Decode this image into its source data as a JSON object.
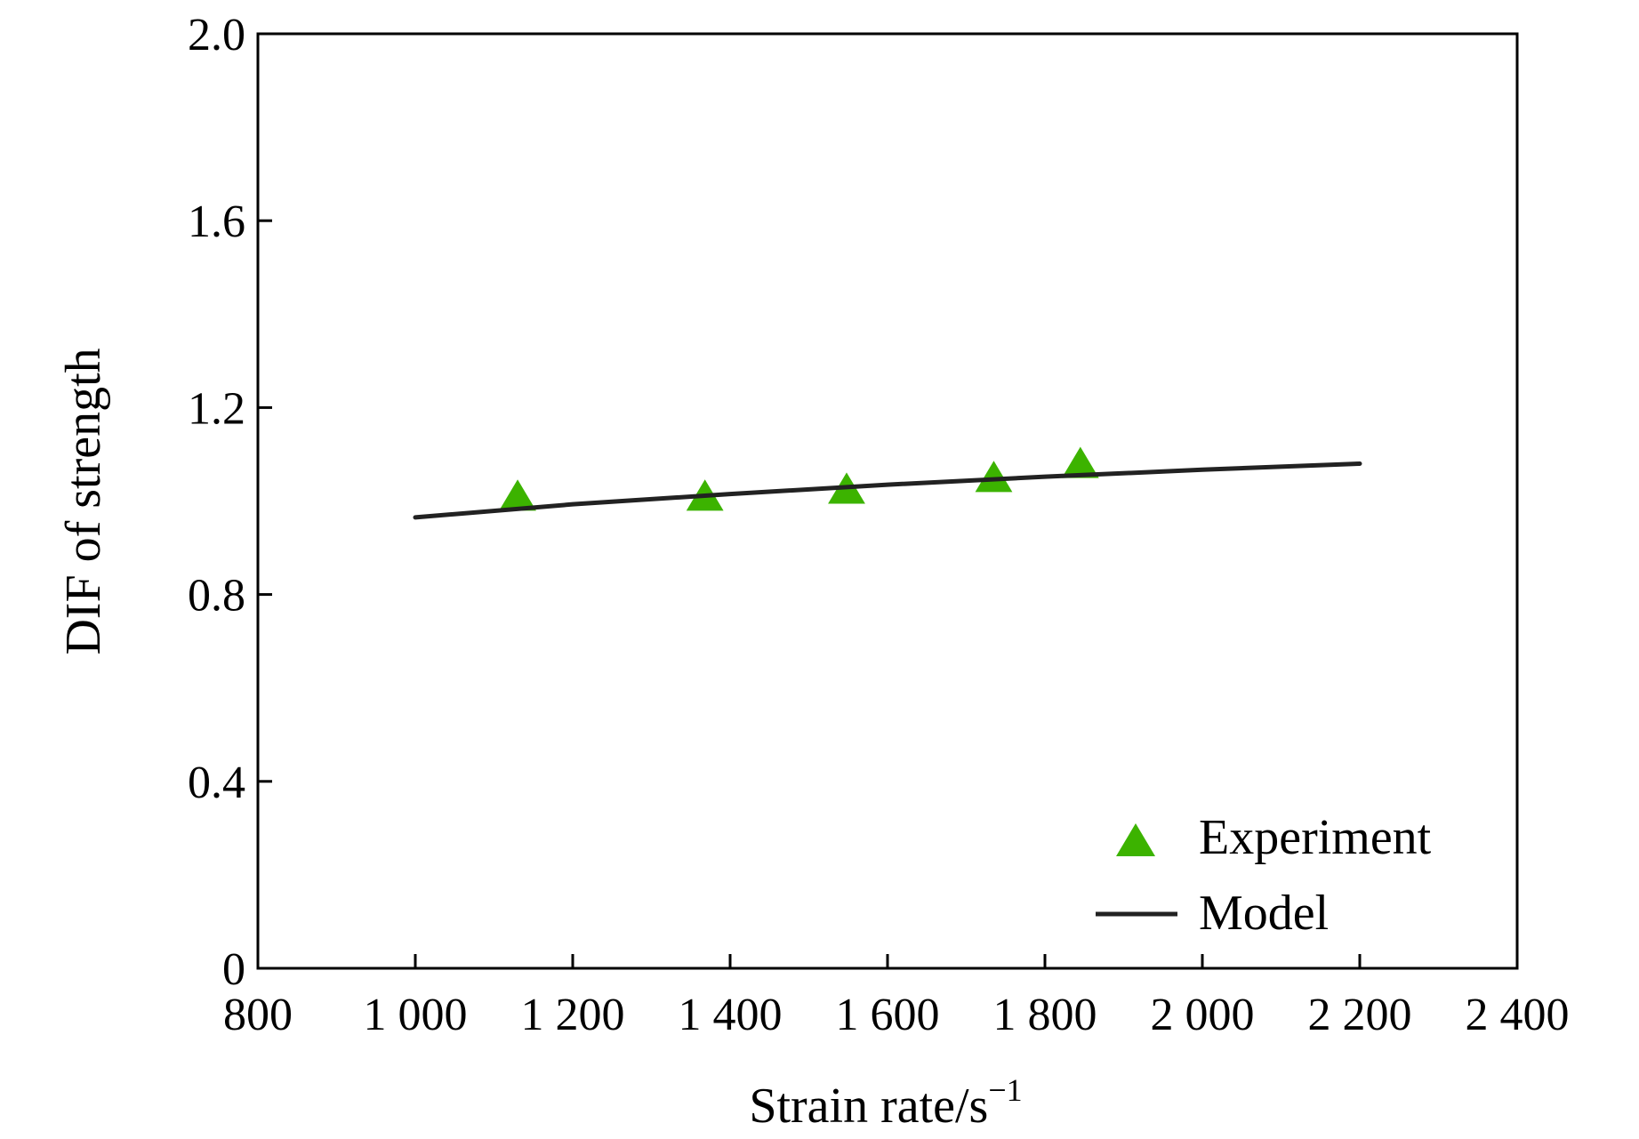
{
  "chart_data": {
    "type": "scatter",
    "xlabel": "Strain rate/s",
    "xlabel_sup": "−1",
    "ylabel": "DIF of strength",
    "xlim": [
      800,
      2400
    ],
    "ylim": [
      0,
      2.0
    ],
    "x_ticks": [
      800,
      1000,
      1200,
      1400,
      1600,
      1800,
      2000,
      2200,
      2400
    ],
    "x_tick_labels": [
      "800",
      "1 000",
      "1 200",
      "1 400",
      "1 600",
      "1 800",
      "2 000",
      "2 200",
      "2 400"
    ],
    "y_ticks": [
      0,
      0.4,
      0.8,
      1.2,
      1.6,
      2.0
    ],
    "y_tick_labels": [
      "0",
      "0.4",
      "0.8",
      "1.2",
      "1.6",
      "2.0"
    ],
    "grid": false,
    "legend_position": "bottom-right",
    "series": [
      {
        "name": "Experiment",
        "kind": "scatter",
        "marker": "triangle",
        "color": "#3cb300",
        "x": [
          1130,
          1368,
          1548,
          1735,
          1845
        ],
        "y": [
          1.01,
          1.01,
          1.025,
          1.05,
          1.08
        ]
      },
      {
        "name": "Model",
        "kind": "line",
        "color": "#222222",
        "x": [
          1000,
          1200,
          1400,
          1600,
          1800,
          2000,
          2200
        ],
        "y": [
          0.965,
          0.993,
          1.015,
          1.035,
          1.052,
          1.067,
          1.08
        ]
      }
    ]
  }
}
